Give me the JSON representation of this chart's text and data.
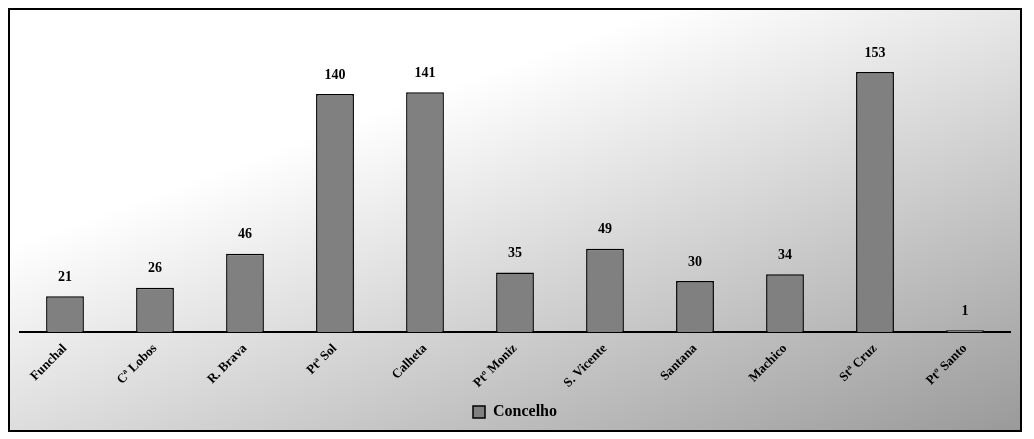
{
  "chart_data": {
    "type": "bar",
    "categories": [
      "Funchal",
      "Cª Lobos",
      "R. Brava",
      "Ptª Sol",
      "Calheta",
      "Ptº Moniz",
      "S. Vicente",
      "Santana",
      "Machico",
      "Stª Cruz",
      "Ptº Santo"
    ],
    "series": [
      {
        "name": "Concelho",
        "color": "#808080",
        "values": [
          21,
          26,
          46,
          140,
          141,
          35,
          49,
          30,
          34,
          153,
          1
        ]
      }
    ],
    "data_labels": true,
    "grid": false,
    "legend": "bottom",
    "tick_labels": "x"
  }
}
